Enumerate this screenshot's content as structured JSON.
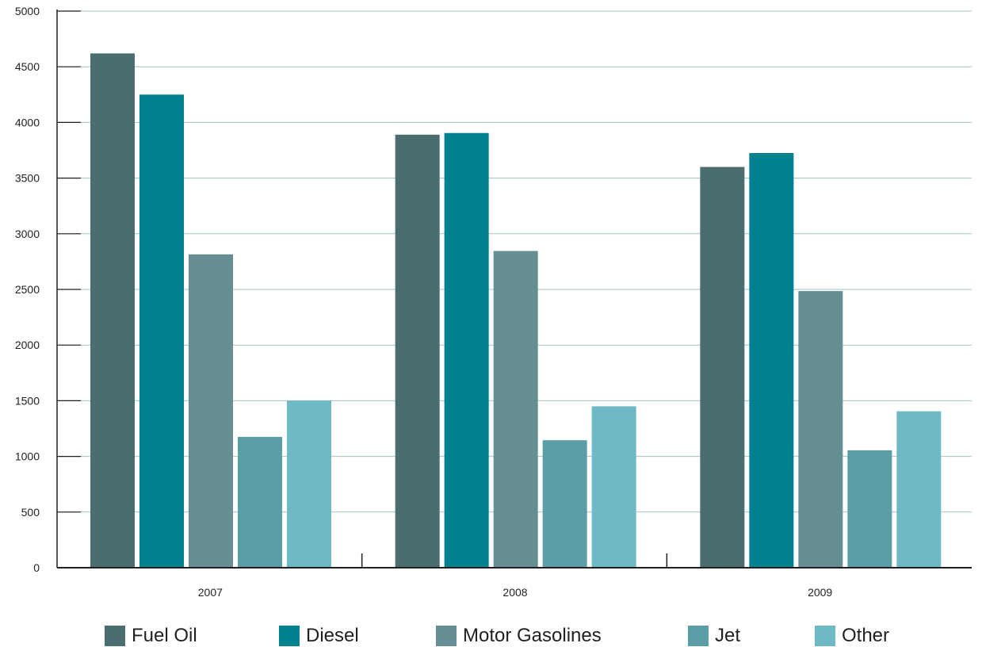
{
  "chart_data": {
    "type": "bar",
    "title": "",
    "xlabel": "",
    "ylabel": "",
    "ylim": [
      0,
      5000
    ],
    "yticks": [
      0,
      500,
      1000,
      1500,
      2000,
      2500,
      3000,
      3500,
      4000,
      4500,
      5000
    ],
    "grid": true,
    "legend_position": "bottom",
    "categories": [
      "2007",
      "2008",
      "2009"
    ],
    "series": [
      {
        "name": "Fuel Oil",
        "color": "#4a6e70",
        "values": [
          4620,
          3890,
          3600
        ]
      },
      {
        "name": "Diesel",
        "color": "#008190",
        "values": [
          4250,
          3905,
          3725
        ]
      },
      {
        "name": "Motor Gasolines",
        "color": "#658f93",
        "values": [
          2815,
          2845,
          2485
        ]
      },
      {
        "name": "Jet",
        "color": "#5b9ea5",
        "values": [
          1175,
          1145,
          1055
        ]
      },
      {
        "name": "Other",
        "color": "#6db9c5",
        "values": [
          1500,
          1450,
          1405
        ]
      }
    ],
    "colors": {
      "grid": "#a7bfc2",
      "axis": "#231f20"
    }
  }
}
